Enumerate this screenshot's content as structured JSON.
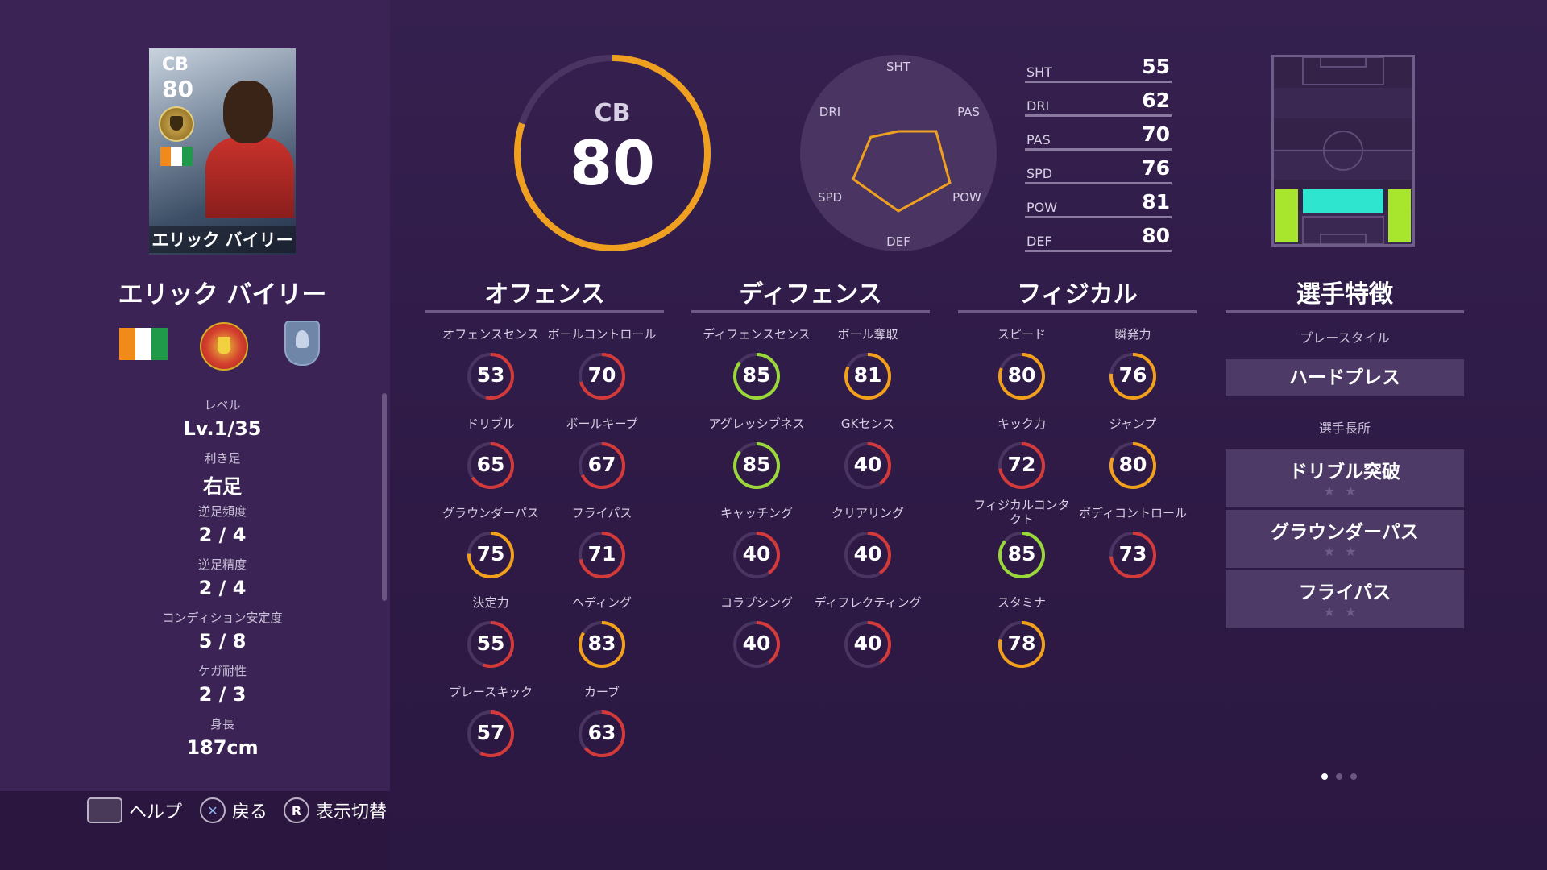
{
  "card": {
    "position": "CB",
    "overall": "80",
    "name": "エリック バイリー"
  },
  "player": {
    "name": "エリック バイリー"
  },
  "info": [
    {
      "label": "レベル",
      "value": "Lv.1/35"
    },
    {
      "label": "利き足",
      "value": "右足"
    },
    {
      "label": "逆足頻度",
      "value": "2 / 4"
    },
    {
      "label": "逆足精度",
      "value": "2 / 4"
    },
    {
      "label": "コンディション安定度",
      "value": "5 / 8"
    },
    {
      "label": "ケガ耐性",
      "value": "2 / 3"
    },
    {
      "label": "身長",
      "value": "187cm"
    }
  ],
  "nav": {
    "help": "ヘルプ",
    "back": "戻る",
    "toggle": "表示切替",
    "back_key": "✕",
    "toggle_key": "R"
  },
  "overall": {
    "position": "CB",
    "value": "80",
    "fraction": 0.8
  },
  "radar": {
    "labels": {
      "sht": "SHT",
      "pas": "PAS",
      "pow": "POW",
      "def": "DEF",
      "spd": "SPD",
      "dri": "DRI"
    },
    "values": {
      "sht": 55,
      "pas": 70,
      "pow": 81,
      "def": 80,
      "spd": 76,
      "dri": 62
    }
  },
  "stats": [
    {
      "label": "SHT",
      "value": "55"
    },
    {
      "label": "DRI",
      "value": "62"
    },
    {
      "label": "PAS",
      "value": "70"
    },
    {
      "label": "SPD",
      "value": "76"
    },
    {
      "label": "POW",
      "value": "81"
    },
    {
      "label": "DEF",
      "value": "80"
    }
  ],
  "sections": {
    "offense": "オフェンス",
    "defense": "ディフェンス",
    "physical": "フィジカル",
    "traits": "選手特徴"
  },
  "offense": [
    {
      "label": "オフェンスセンス",
      "value": "53"
    },
    {
      "label": "ボールコントロール",
      "value": "70"
    },
    {
      "label": "ドリブル",
      "value": "65"
    },
    {
      "label": "ボールキープ",
      "value": "67"
    },
    {
      "label": "グラウンダーパス",
      "value": "75"
    },
    {
      "label": "フライパス",
      "value": "71"
    },
    {
      "label": "決定力",
      "value": "55"
    },
    {
      "label": "ヘディング",
      "value": "83"
    },
    {
      "label": "プレースキック",
      "value": "57"
    },
    {
      "label": "カーブ",
      "value": "63"
    }
  ],
  "defense": [
    {
      "label": "ディフェンスセンス",
      "value": "85"
    },
    {
      "label": "ボール奪取",
      "value": "81"
    },
    {
      "label": "アグレッシブネス",
      "value": "85"
    },
    {
      "label": "GKセンス",
      "value": "40"
    },
    {
      "label": "キャッチング",
      "value": "40"
    },
    {
      "label": "クリアリング",
      "value": "40"
    },
    {
      "label": "コラプシング",
      "value": "40"
    },
    {
      "label": "ディフレクティング",
      "value": "40"
    }
  ],
  "physical": [
    {
      "label": "スピード",
      "value": "80"
    },
    {
      "label": "瞬発力",
      "value": "76"
    },
    {
      "label": "キック力",
      "value": "72"
    },
    {
      "label": "ジャンプ",
      "value": "80"
    },
    {
      "label": "フィジカルコンタクト",
      "value": "85"
    },
    {
      "label": "ボディコントロール",
      "value": "73"
    },
    {
      "label": "スタミナ",
      "value": "78"
    }
  ],
  "traits": {
    "playstyle_label": "プレースタイル",
    "playstyle": "ハードプレス",
    "skills_label": "選手長所",
    "skills": [
      "ドリブル突破",
      "グラウンダーパス",
      "フライパス"
    ],
    "stars": "★★"
  },
  "colors": {
    "low": "#d43a3a",
    "mid": "#f2a01c",
    "high": "#9ad83a",
    "ring": "#f0a020",
    "radar": "#f0a020",
    "pitch_active": "#2ee6d0",
    "pitch_side": "#a8e62e"
  }
}
